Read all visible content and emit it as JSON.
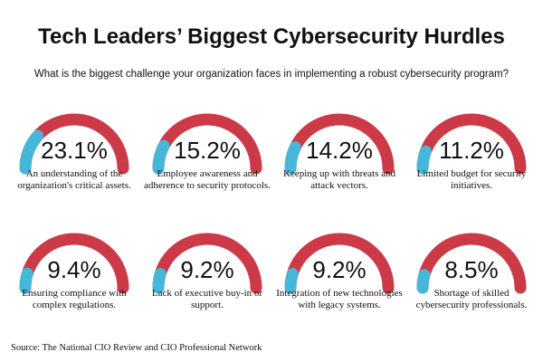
{
  "title": "Tech Leaders’ Biggest Cybersecurity Hurdles",
  "subtitle": "What is the biggest challenge your organization faces in implementing a robust cybersecurity program?",
  "source": "Source: The National CIO Review and CIO Professional Network",
  "colors": {
    "track": "#cc3a47",
    "fill": "#45b8d9",
    "text": "#111111"
  },
  "chart_data": {
    "type": "gauge",
    "title": "Tech Leaders’ Biggest Cybersecurity Hurdles",
    "max": 100,
    "items": [
      {
        "value": 23.1,
        "value_label": "23.1%",
        "label": "An understanding of the organization's critical assets."
      },
      {
        "value": 15.2,
        "value_label": "15.2%",
        "label": "Employee awareness and adherence to security protocols."
      },
      {
        "value": 14.2,
        "value_label": "14.2%",
        "label": "Keeping up with threats and attack vectors."
      },
      {
        "value": 11.2,
        "value_label": "11.2%",
        "label": "Limited budget for security initiatives."
      },
      {
        "value": 9.4,
        "value_label": "9.4%",
        "label": "Ensuring compliance with complex regulations."
      },
      {
        "value": 9.2,
        "value_label": "9.2%",
        "label": "Lack of executive buy-in or support."
      },
      {
        "value": 9.2,
        "value_label": "9.2%",
        "label": "Integration of new technologies with legacy systems."
      },
      {
        "value": 8.5,
        "value_label": "8.5%",
        "label": "Shortage of skilled cybersecurity professionals."
      }
    ]
  }
}
